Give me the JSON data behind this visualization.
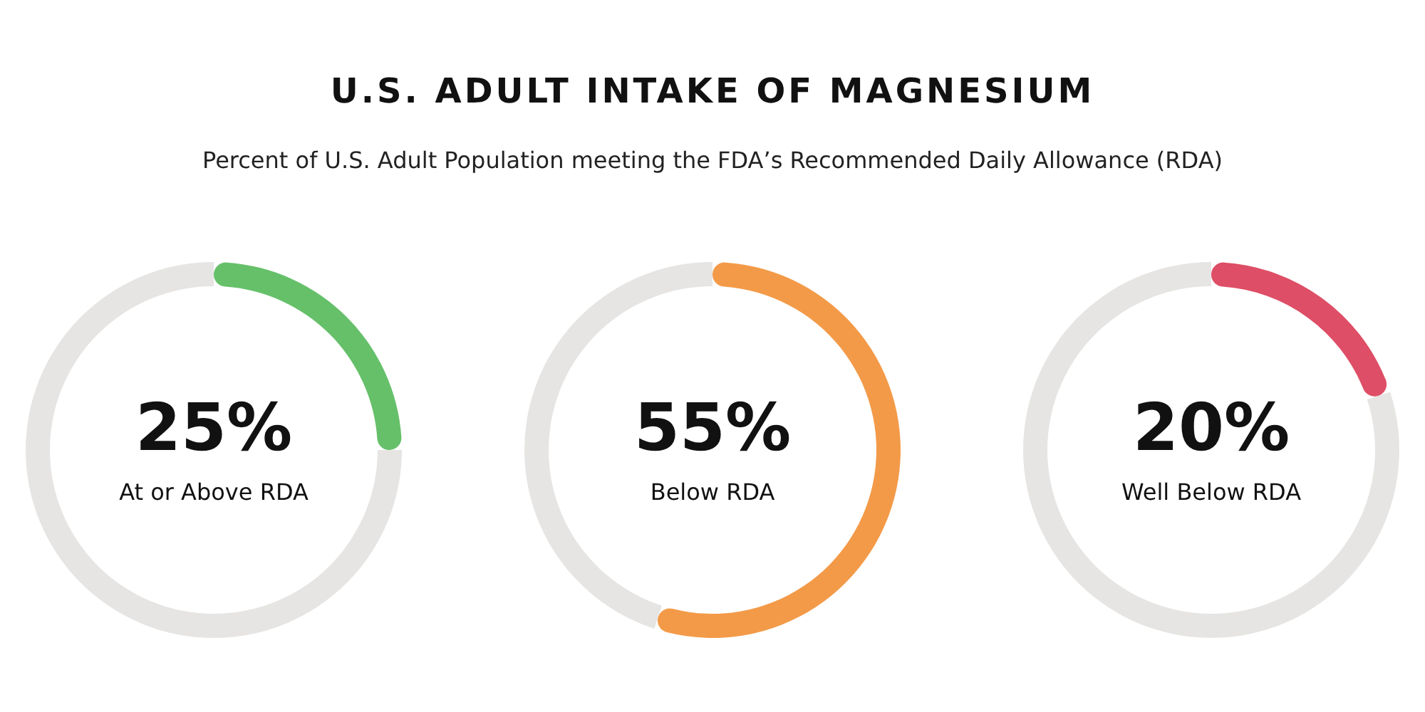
{
  "chart_data": [
    {
      "type": "other",
      "title": "U.S. ADULT INTAKE OF MAGNESIUM",
      "subtitle": "Percent of U.S. Adult Population meeting the FDA’s Recommended Daily Allowance (RDA)"
    },
    {
      "type": "donut",
      "categories": [
        "At or Above RDA",
        null
      ],
      "values": [
        25,
        75
      ],
      "colors": [
        "#66c06a",
        "#e6e5e3"
      ],
      "value_labels": [
        "25%",
        null
      ]
    },
    {
      "type": "donut",
      "categories": [
        "Below RDA",
        null
      ],
      "values": [
        55,
        45
      ],
      "colors": [
        "#f39a48",
        "#e6e5e3"
      ],
      "value_labels": [
        "55%",
        null
      ]
    },
    {
      "type": "donut",
      "categories": [
        "Well Below RDA",
        null
      ],
      "values": [
        20,
        80
      ],
      "colors": [
        "#de4e66",
        "#e6e5e3"
      ],
      "value_labels": [
        "20%",
        null
      ]
    }
  ]
}
